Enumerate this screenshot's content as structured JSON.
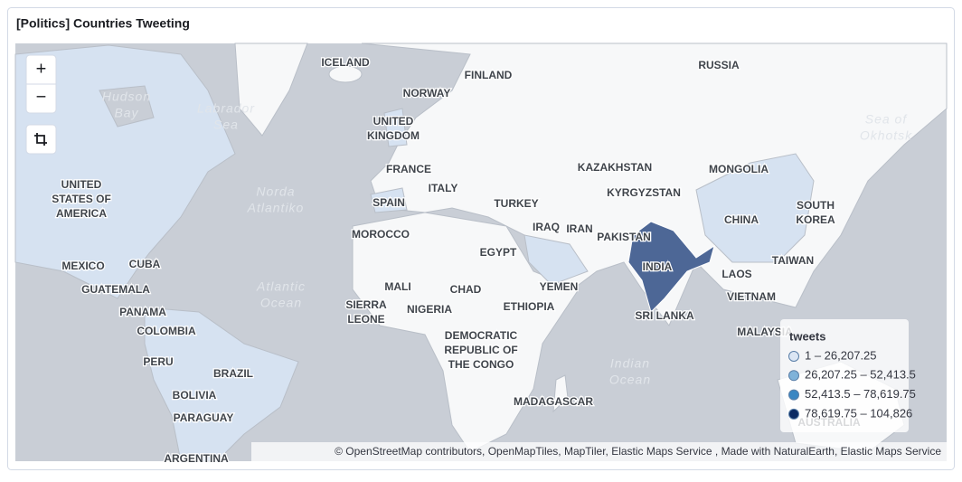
{
  "panel": {
    "title": "[Politics] Countries Tweeting"
  },
  "controls": {
    "zoom_in": "+",
    "zoom_out": "−"
  },
  "map": {
    "country_labels": [
      [
        "ICELAND"
      ],
      [
        "RUSSIA"
      ],
      [
        "FINLAND"
      ],
      [
        "NORWAY"
      ],
      [
        "UNITED",
        "KINGDOM"
      ],
      [
        "FRANCE"
      ],
      [
        "KAZAKHSTAN"
      ],
      [
        "MONGOLIA"
      ],
      [
        "UNITED",
        "STATES OF",
        "AMERICA"
      ],
      [
        "ITALY"
      ],
      [
        "KYRGYZSTAN"
      ],
      [
        "SPAIN"
      ],
      [
        "TURKEY"
      ],
      [
        "CHINA"
      ],
      [
        "SOUTH",
        "KOREA"
      ],
      [
        "IRAQ"
      ],
      [
        "IRAN"
      ],
      [
        "PAKISTAN"
      ],
      [
        "MOROCCO"
      ],
      [
        "EGYPT"
      ],
      [
        "INDIA"
      ],
      [
        "TAIWAN"
      ],
      [
        "MEXICO"
      ],
      [
        "CUBA"
      ],
      [
        "LAOS"
      ],
      [
        "MALI"
      ],
      [
        "CHAD"
      ],
      [
        "YEMEN"
      ],
      [
        "GUATEMALA"
      ],
      [
        "VIETNAM"
      ],
      [
        "SIERRA",
        "LEONE"
      ],
      [
        "NIGERIA"
      ],
      [
        "ETHIOPIA"
      ],
      [
        "PANAMA"
      ],
      [
        "SRI LANKA"
      ],
      [
        "COLOMBIA"
      ],
      [
        "DEMOCRATIC",
        "REPUBLIC OF",
        "THE CONGO"
      ],
      [
        "MALAYSIA"
      ],
      [
        "PERU"
      ],
      [
        "BRAZIL"
      ],
      [
        "BOLIVIA"
      ],
      [
        "MADAGASCAR"
      ],
      [
        "PARAGUAY"
      ],
      [
        "AUSTRALIA"
      ],
      [
        "ARGENTINA"
      ]
    ],
    "water_labels": [
      [
        "Hudson",
        "Bay"
      ],
      [
        "Labrador",
        "Sea"
      ],
      [
        "Sea of",
        "Okhotsk"
      ],
      [
        "Norda",
        "Atlantiko"
      ],
      [
        "Atlantic",
        "Ocean"
      ],
      [
        "Indian",
        "Ocean"
      ]
    ]
  },
  "legend": {
    "title": "tweets",
    "entries": [
      {
        "label": "1 – 26,207.25",
        "color": "#dbe6f4"
      },
      {
        "label": "26,207.25 – 52,413.5",
        "color": "#7fb2d9"
      },
      {
        "label": "52,413.5 – 78,619.75",
        "color": "#3a86c2"
      },
      {
        "label": "78,619.75 – 104,826",
        "color": "#0b2a63"
      }
    ]
  },
  "attribution": "© OpenStreetMap contributors, OpenMapTiles, MapTiler, Elastic Maps Service , Made with NaturalEarth, Elastic Maps Service"
}
